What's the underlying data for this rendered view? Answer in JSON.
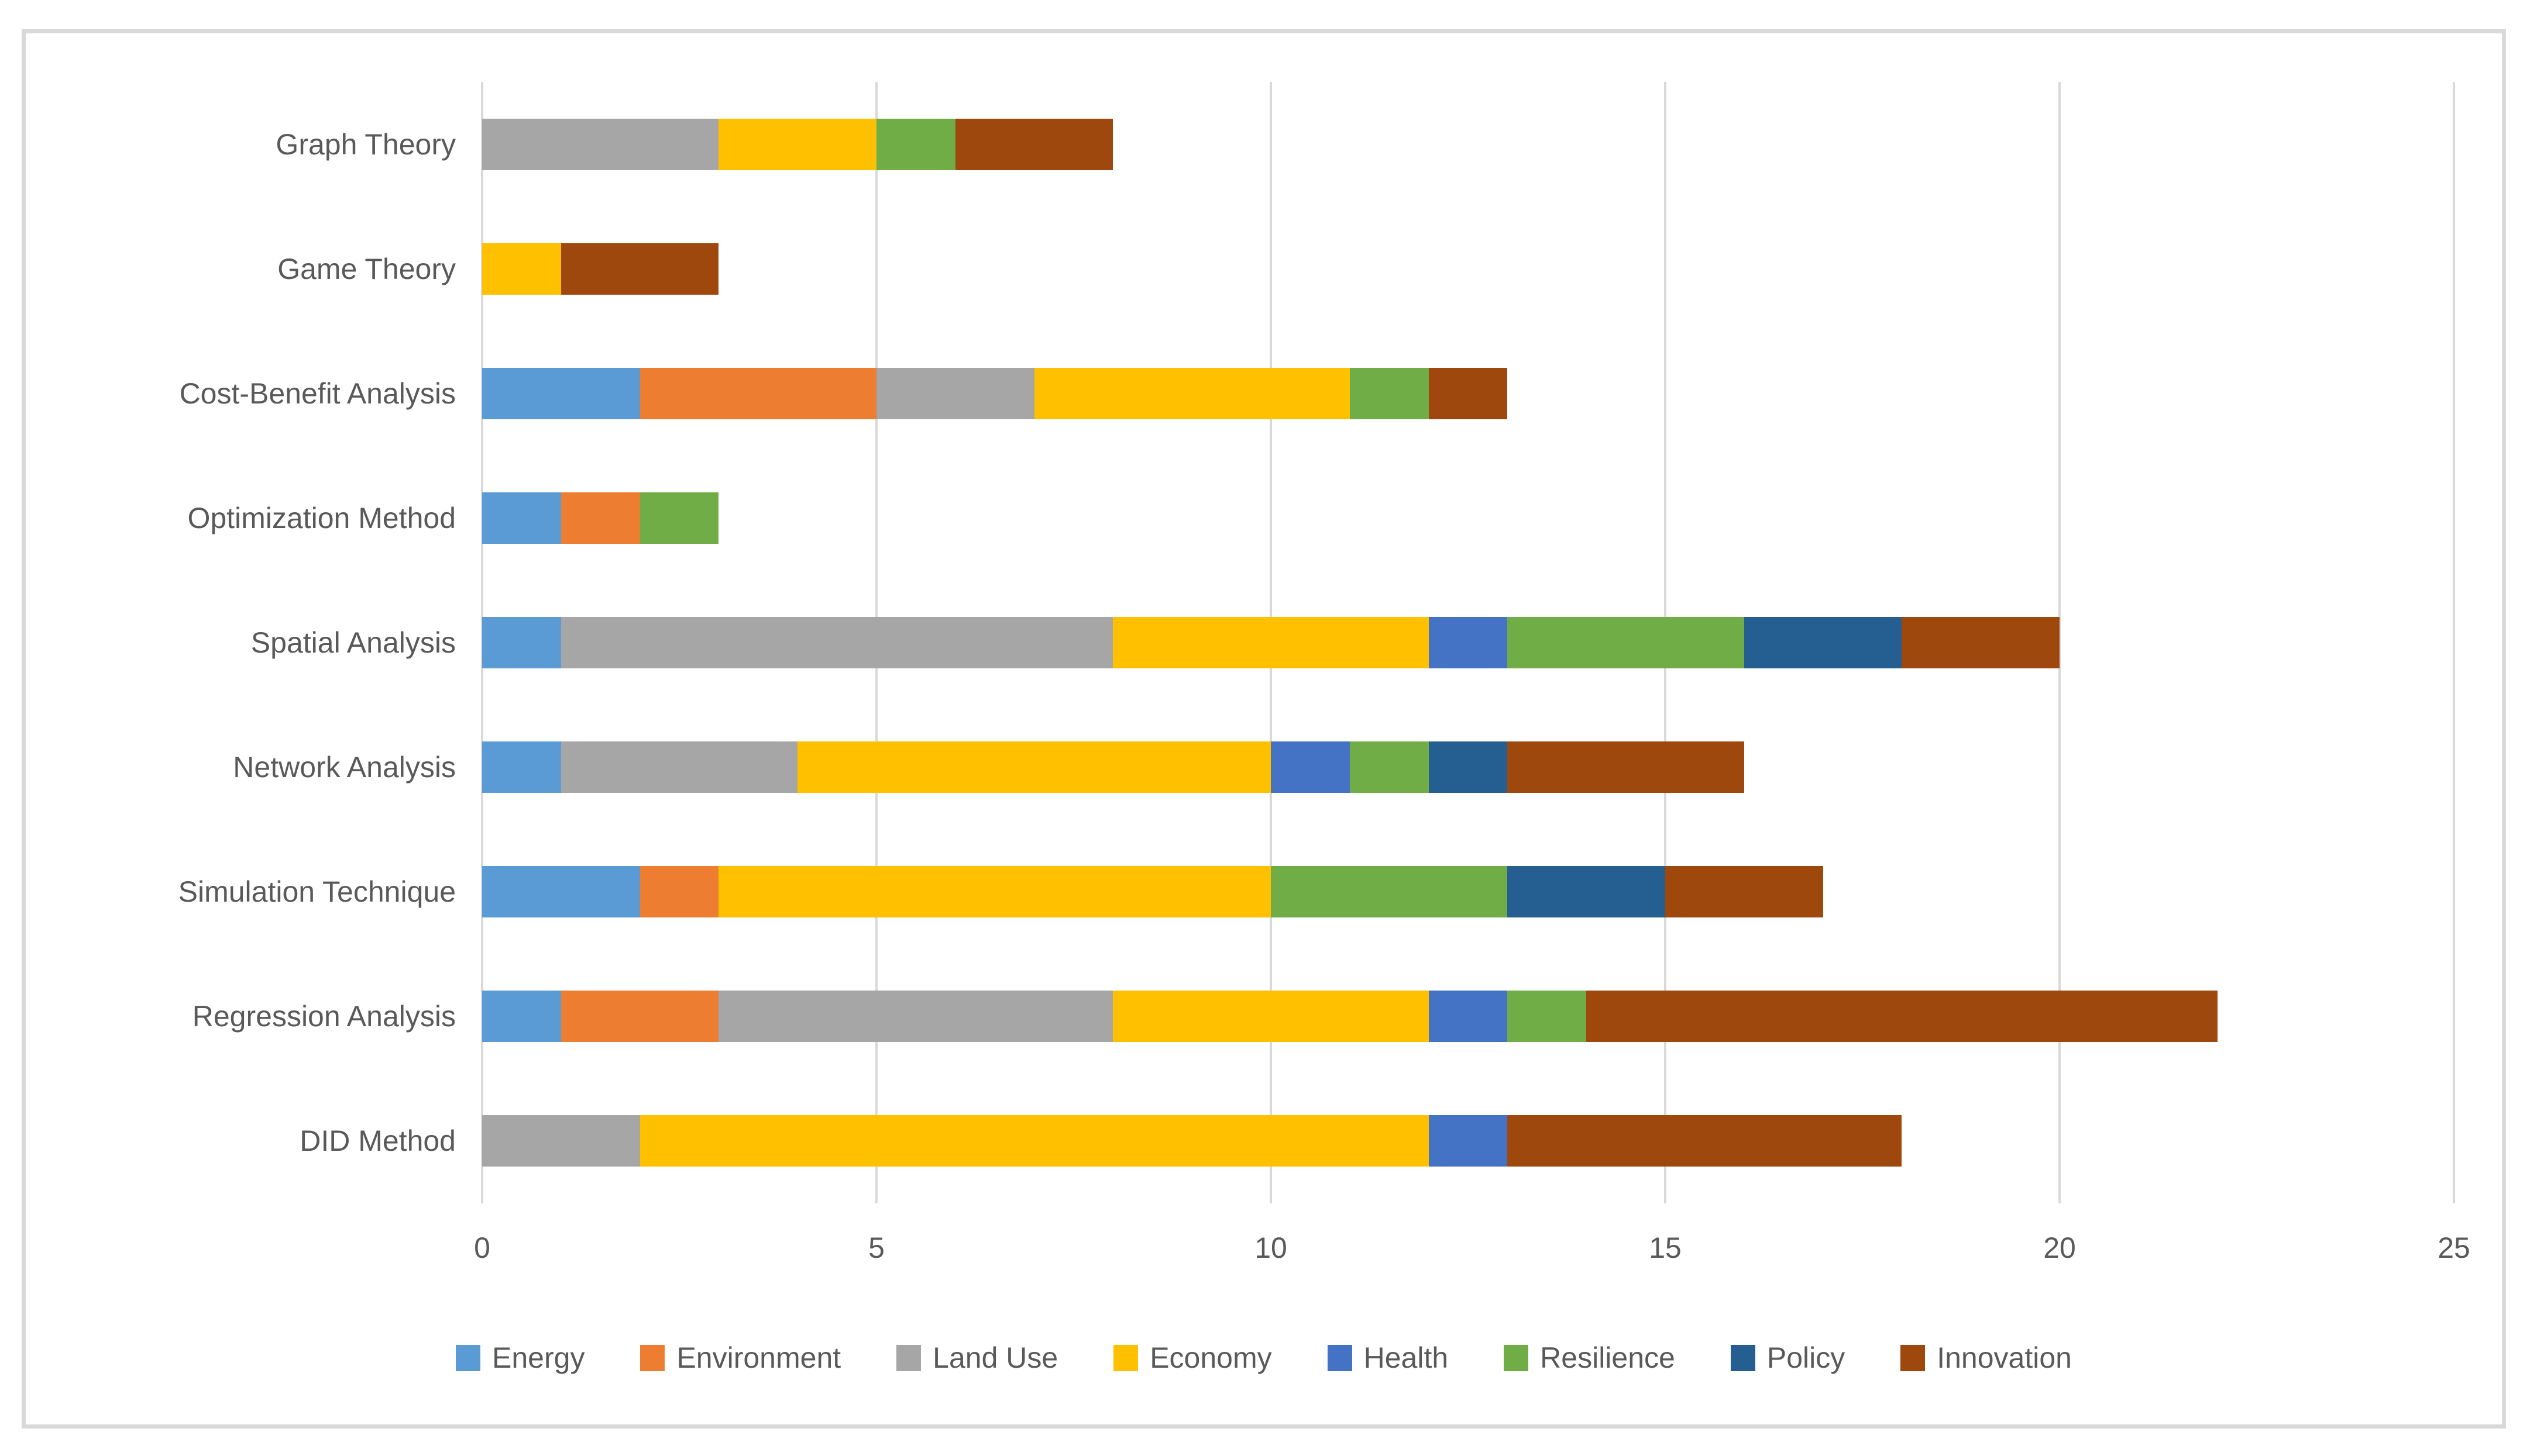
{
  "figure": {
    "background": "#ffffff",
    "border_color": "#D9D9D9",
    "gridline_color": "#D9D9D9",
    "text_color": "#595959"
  },
  "chart_data": {
    "type": "bar",
    "orientation": "horizontal",
    "stacked": true,
    "title": "",
    "xlabel": "",
    "ylabel": "",
    "xlim": [
      0,
      25
    ],
    "x_ticks": [
      0,
      5,
      10,
      15,
      20,
      25
    ],
    "grid": "vertical",
    "legend_position": "bottom",
    "categories": [
      "Graph Theory",
      "Game Theory",
      "Cost-Benefit Analysis",
      "Optimization Method",
      "Spatial Analysis",
      "Network Analysis",
      "Simulation Technique",
      "Regression Analysis",
      "DID Method"
    ],
    "series": [
      {
        "name": "Energy",
        "color": "#5B9BD5",
        "values": [
          0,
          0,
          2,
          1,
          1,
          1,
          2,
          1,
          0
        ]
      },
      {
        "name": "Environment",
        "color": "#ED7D31",
        "values": [
          0,
          0,
          3,
          1,
          0,
          0,
          1,
          2,
          0
        ]
      },
      {
        "name": "Land Use",
        "color": "#A6A6A6",
        "values": [
          3,
          0,
          2,
          0,
          7,
          3,
          0,
          5,
          2
        ]
      },
      {
        "name": "Economy",
        "color": "#FFC000",
        "values": [
          2,
          1,
          4,
          0,
          4,
          6,
          7,
          4,
          10
        ]
      },
      {
        "name": "Health",
        "color": "#4472C4",
        "values": [
          0,
          0,
          0,
          0,
          1,
          1,
          0,
          1,
          1
        ]
      },
      {
        "name": "Resilience",
        "color": "#70AD47",
        "values": [
          1,
          0,
          1,
          1,
          3,
          1,
          3,
          1,
          0
        ]
      },
      {
        "name": "Policy",
        "color": "#255E91",
        "values": [
          0,
          0,
          0,
          0,
          2,
          1,
          2,
          0,
          0
        ]
      },
      {
        "name": "Innovation",
        "color": "#9E480E",
        "values": [
          2,
          2,
          1,
          0,
          2,
          3,
          2,
          8,
          5
        ]
      }
    ],
    "totals": [
      8,
      3,
      13,
      3,
      20,
      16,
      17,
      22,
      18
    ]
  },
  "layout_note": "stacked horizontal bar chart, legend row of 8 entries below axis"
}
